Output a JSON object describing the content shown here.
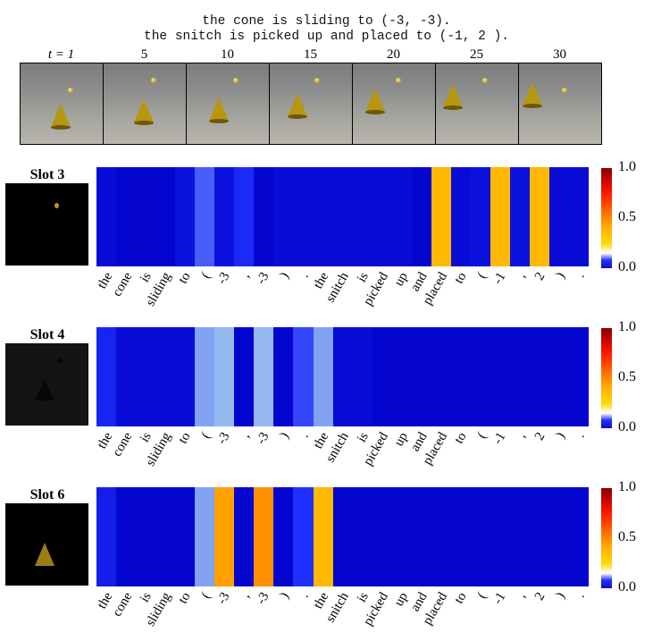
{
  "caption": {
    "line1": "the cone is sliding to (-3, -3).",
    "line2": "the snitch is picked up and placed to (-1, 2 )."
  },
  "frames": {
    "labels": [
      "t = 1",
      "5",
      "10",
      "15",
      "20",
      "25",
      "30"
    ]
  },
  "tokens": [
    "the",
    "cone",
    "is",
    "sliding",
    "to",
    "(",
    "-3",
    ",",
    "-3",
    ")",
    ".",
    "the",
    "snitch",
    "is",
    "picked",
    "up",
    "and",
    "placed",
    "to",
    "(",
    "-1",
    ",",
    "2",
    ")",
    "."
  ],
  "colorbar": {
    "max": "1.0",
    "mid": "0.5",
    "min": "0.0"
  },
  "slots": [
    {
      "label": "Slot 3",
      "values": [
        0.02,
        0.01,
        0.01,
        0.01,
        0.03,
        0.12,
        0.03,
        0.07,
        0.01,
        0.02,
        0.02,
        0.02,
        0.02,
        0.02,
        0.02,
        0.02,
        0.01,
        0.42,
        0.02,
        0.03,
        0.42,
        0.03,
        0.42,
        0.02,
        0.02
      ]
    },
    {
      "label": "Slot 4",
      "values": [
        0.06,
        0.02,
        0.02,
        0.02,
        0.02,
        0.18,
        0.2,
        0.01,
        0.2,
        0.01,
        0.1,
        0.18,
        0.02,
        0.02,
        0.01,
        0.01,
        0.01,
        0.01,
        0.01,
        0.01,
        0.01,
        0.01,
        0.01,
        0.01,
        0.01
      ]
    },
    {
      "label": "Slot 6",
      "values": [
        0.05,
        0.01,
        0.01,
        0.01,
        0.01,
        0.18,
        0.5,
        0.01,
        0.55,
        0.01,
        0.08,
        0.42,
        0.01,
        0.01,
        0.01,
        0.01,
        0.01,
        0.01,
        0.01,
        0.01,
        0.01,
        0.01,
        0.01,
        0.01,
        0.01
      ]
    }
  ]
}
